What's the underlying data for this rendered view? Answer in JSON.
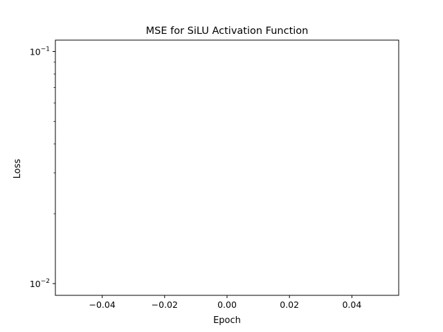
{
  "chart_data": {
    "type": "line",
    "title": "MSE for SiLU Activation Function",
    "xlabel": "Epoch",
    "ylabel": "Loss",
    "xlim": [
      -0.055,
      0.055
    ],
    "ylim": [
      0.0089,
      0.112
    ],
    "yscale": "log",
    "grid": false,
    "legend": "none",
    "x_ticks": [
      -0.04,
      -0.02,
      0.0,
      0.02,
      0.04
    ],
    "x_tick_labels": [
      "−0.04",
      "−0.02",
      "0.00",
      "0.02",
      "0.04"
    ],
    "y_major_ticks": [
      0.01,
      0.1
    ],
    "y_major_tick_labels": [
      {
        "base": "10",
        "exp": "−2"
      },
      {
        "base": "10",
        "exp": "−1"
      }
    ],
    "y_minor_ticks": [
      0.02,
      0.03,
      0.04,
      0.05,
      0.06,
      0.07,
      0.08,
      0.09
    ],
    "series": [
      {
        "values": []
      }
    ]
  }
}
